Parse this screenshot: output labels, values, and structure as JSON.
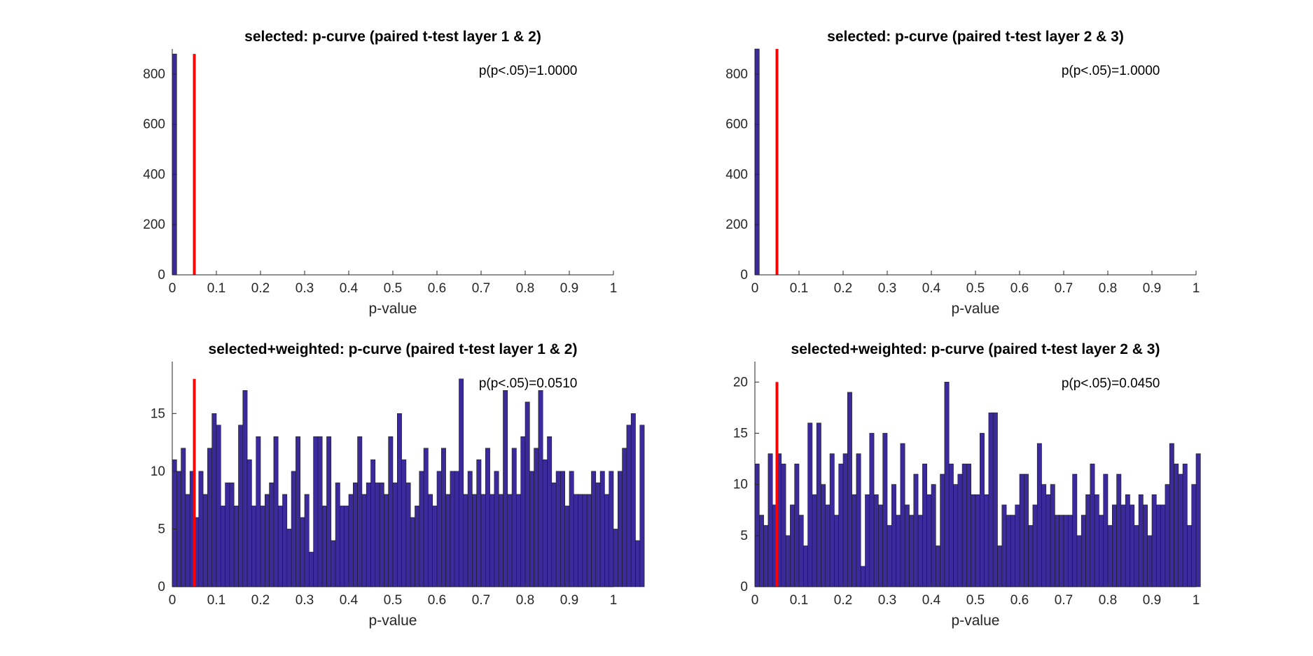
{
  "chart_data": [
    {
      "type": "bar",
      "title": "selected: p-curve (paired t-test layer 1 & 2)",
      "xlabel": "p-value",
      "ylabel": "",
      "xlim": [
        0,
        1
      ],
      "ylim": [
        0,
        900
      ],
      "xticks": [
        "0",
        "0.1",
        "0.2",
        "0.3",
        "0.4",
        "0.5",
        "0.6",
        "0.7",
        "0.8",
        "0.9",
        "1"
      ],
      "yticks": [
        "0",
        "200",
        "400",
        "600",
        "800"
      ],
      "annotation": "p(p<.05)=1.0000",
      "threshold": 0.05,
      "threshold_height": 880,
      "bin_width": 0.01,
      "values": [
        880,
        0,
        0,
        0,
        0,
        0,
        0,
        0,
        0,
        0,
        0,
        0,
        0,
        0,
        0,
        0,
        0,
        0,
        0,
        0,
        0,
        0,
        0,
        0,
        0,
        0,
        0,
        0,
        0,
        0,
        0,
        0,
        0,
        0,
        0,
        0,
        0,
        0,
        0,
        0,
        0,
        0,
        0,
        0,
        0,
        0,
        0,
        0,
        0,
        0,
        0,
        0,
        0,
        0,
        0,
        0,
        0,
        0,
        0,
        0,
        0,
        0,
        0,
        0,
        0,
        0,
        0,
        0,
        0,
        0,
        0,
        0,
        0,
        0,
        0,
        0,
        0,
        0,
        0,
        0,
        0,
        0,
        0,
        0,
        0,
        0,
        0,
        0,
        0,
        0,
        0,
        0,
        0,
        0,
        0,
        0,
        0,
        0,
        0,
        0
      ],
      "bar_color": "#3a2a9c",
      "threshold_color": "#ff0000"
    },
    {
      "type": "bar",
      "title": "selected: p-curve (paired t-test layer 2 & 3)",
      "xlabel": "p-value",
      "ylabel": "",
      "xlim": [
        0,
        1
      ],
      "ylim": [
        0,
        900
      ],
      "xticks": [
        "0",
        "0.1",
        "0.2",
        "0.3",
        "0.4",
        "0.5",
        "0.6",
        "0.7",
        "0.8",
        "0.9",
        "1"
      ],
      "yticks": [
        "0",
        "200",
        "400",
        "600",
        "800"
      ],
      "annotation": "p(p<.05)=1.0000",
      "threshold": 0.05,
      "threshold_height": 900,
      "bin_width": 0.01,
      "values": [
        900,
        0,
        0,
        0,
        0,
        0,
        0,
        0,
        0,
        0,
        0,
        0,
        0,
        0,
        0,
        0,
        0,
        0,
        0,
        0,
        0,
        0,
        0,
        0,
        0,
        0,
        0,
        0,
        0,
        0,
        0,
        0,
        0,
        0,
        0,
        0,
        0,
        0,
        0,
        0,
        0,
        0,
        0,
        0,
        0,
        0,
        0,
        0,
        0,
        0,
        0,
        0,
        0,
        0,
        0,
        0,
        0,
        0,
        0,
        0,
        0,
        0,
        0,
        0,
        0,
        0,
        0,
        0,
        0,
        0,
        0,
        0,
        0,
        0,
        0,
        0,
        0,
        0,
        0,
        0,
        0,
        0,
        0,
        0,
        0,
        0,
        0,
        0,
        0,
        0,
        0,
        0,
        0,
        0,
        0,
        0,
        0,
        0,
        0,
        0
      ],
      "bar_color": "#3a2a9c",
      "threshold_color": "#ff0000"
    },
    {
      "type": "bar",
      "title": "selected+weighted: p-curve (paired t-test layer 1 & 2)",
      "xlabel": "p-value",
      "ylabel": "",
      "xlim": [
        0,
        1
      ],
      "ylim": [
        0,
        19.5
      ],
      "xticks": [
        "0",
        "0.1",
        "0.2",
        "0.3",
        "0.4",
        "0.5",
        "0.6",
        "0.7",
        "0.8",
        "0.9",
        "1"
      ],
      "yticks": [
        "0",
        "5",
        "10",
        "15"
      ],
      "annotation": "p(p<.05)=0.0510",
      "threshold": 0.05,
      "threshold_height": 18,
      "bin_width": 0.01,
      "values": [
        11,
        10,
        12,
        8,
        10,
        6,
        10,
        8,
        12,
        15,
        14,
        7,
        9,
        9,
        7,
        14,
        17,
        11,
        7,
        13,
        7,
        8,
        9,
        13,
        7,
        8,
        5,
        10,
        13,
        6,
        8,
        3,
        13,
        13,
        7,
        13,
        4,
        9,
        7,
        7,
        8,
        9,
        13,
        8,
        9,
        11,
        9,
        9,
        8,
        13,
        9,
        15,
        11,
        9,
        6,
        7,
        10,
        12,
        8,
        7,
        10,
        12,
        8,
        10,
        10,
        18,
        8,
        10,
        8,
        11,
        8,
        12,
        8,
        10,
        8,
        17,
        8,
        12,
        8,
        13,
        16,
        10,
        12,
        17,
        11,
        13,
        9,
        10,
        10,
        7,
        10,
        8,
        8,
        8,
        8,
        10,
        9,
        10,
        8,
        10,
        5,
        10,
        12,
        14,
        15,
        4,
        14
      ],
      "bar_color": "#3a2a9c",
      "threshold_color": "#ff0000"
    },
    {
      "type": "bar",
      "title": "selected+weighted: p-curve (paired t-test layer 2 & 3)",
      "xlabel": "p-value",
      "ylabel": "",
      "xlim": [
        0,
        1
      ],
      "ylim": [
        0,
        22
      ],
      "xticks": [
        "0",
        "0.1",
        "0.2",
        "0.3",
        "0.4",
        "0.5",
        "0.6",
        "0.7",
        "0.8",
        "0.9",
        "1"
      ],
      "yticks": [
        "0",
        "5",
        "10",
        "15",
        "20"
      ],
      "annotation": "p(p<.05)=0.0450",
      "threshold": 0.05,
      "threshold_height": 20,
      "bin_width": 0.01,
      "values": [
        12,
        7,
        6,
        13,
        8,
        13,
        12,
        5,
        8,
        12,
        7,
        4,
        16,
        9,
        16,
        10,
        8,
        13,
        7,
        12,
        13,
        19,
        9,
        13,
        2,
        9,
        15,
        9,
        8,
        15,
        6,
        10,
        7,
        14,
        8,
        7,
        11,
        7,
        12,
        9,
        10,
        4,
        11,
        20,
        12,
        10,
        11,
        12,
        12,
        9,
        9,
        15,
        9,
        17,
        17,
        4,
        8,
        7,
        7,
        8,
        11,
        11,
        6,
        8,
        14,
        10,
        9,
        10,
        7,
        7,
        7,
        7,
        11,
        5,
        7,
        9,
        12,
        9,
        7,
        11,
        6,
        8,
        11,
        8,
        9,
        8,
        6,
        9,
        8,
        5,
        9,
        8,
        8,
        10,
        14,
        12,
        11,
        12,
        6,
        10,
        13
      ],
      "bar_color": "#3a2a9c",
      "threshold_color": "#ff0000"
    }
  ]
}
